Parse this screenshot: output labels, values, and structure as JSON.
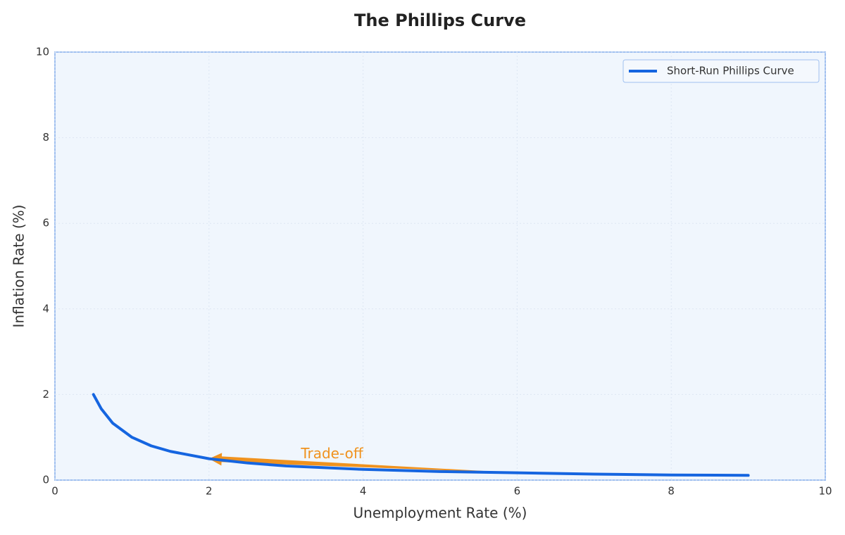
{
  "chart_data": {
    "type": "line",
    "title": "The Phillips Curve",
    "x_label": "Unemployment Rate (%)",
    "y_label": "Inflation Rate (%)",
    "x": [
      0.5,
      0.6,
      0.75,
      1,
      1.25,
      1.5,
      2,
      2.5,
      3,
      4,
      5,
      6,
      7,
      8,
      9
    ],
    "series": [
      {
        "name": "Short-Run Phillips Curve",
        "color": "#1565e0",
        "values": [
          2,
          1.67,
          1.33,
          1,
          0.8,
          0.67,
          0.5,
          0.4,
          0.33,
          0.25,
          0.2,
          0.17,
          0.14,
          0.12,
          0.11
        ]
      }
    ],
    "xlim": [
      0,
      10
    ],
    "ylim": [
      0,
      10
    ],
    "xticks": [
      0,
      2,
      4,
      6,
      8,
      10
    ],
    "yticks": [
      0,
      2,
      4,
      6,
      8,
      10
    ],
    "grid": true,
    "legend": "upper right",
    "annotation": {
      "text": "Trade-off",
      "x": 4,
      "y": 0.6,
      "color": "#f0921e",
      "arrow_from": [
        6,
        0.17
      ],
      "arrow_to": [
        2,
        0.5
      ]
    }
  }
}
